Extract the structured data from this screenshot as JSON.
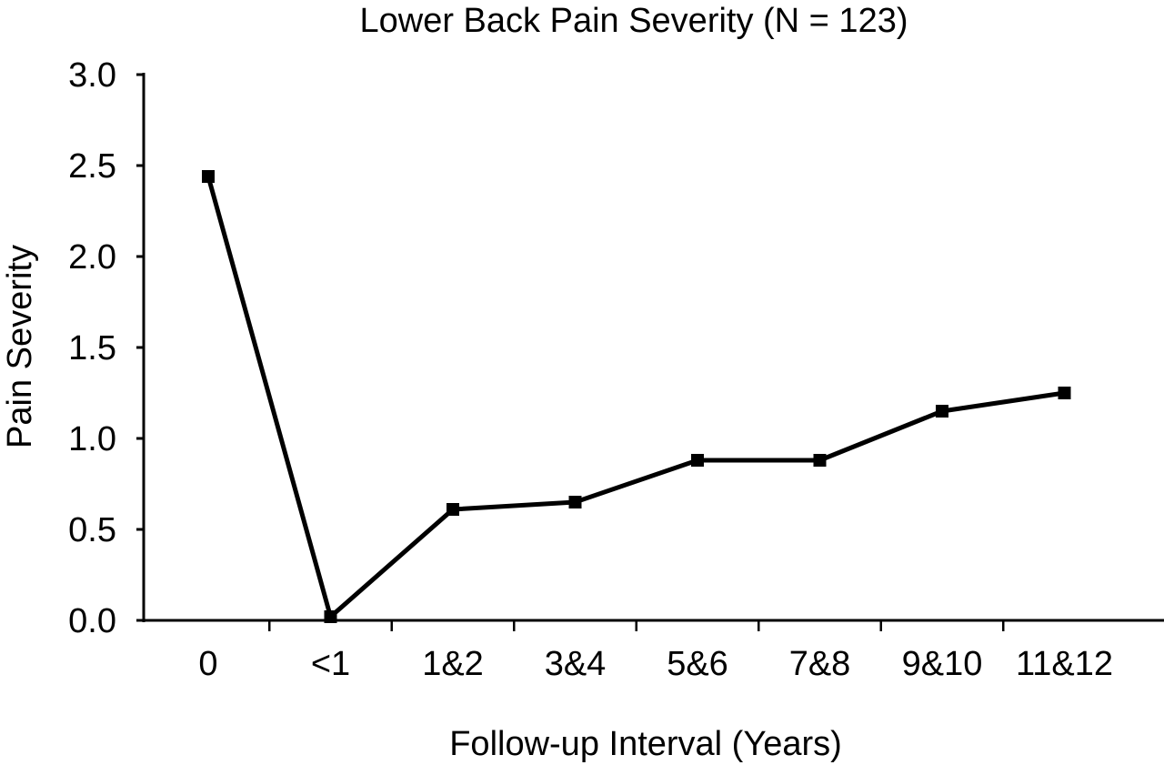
{
  "chart_data": {
    "type": "line",
    "title": "Lower Back Pain Severity (N = 123)",
    "xlabel": "Follow-up Interval (Years)",
    "ylabel": "Pain Severity",
    "categories": [
      "0",
      "<1",
      "1&2",
      "3&4",
      "5&6",
      "7&8",
      "9&10",
      "11&12"
    ],
    "series": [
      {
        "values": [
          2.44,
          0.02,
          0.61,
          0.65,
          0.88,
          0.88,
          1.15,
          1.25
        ]
      }
    ],
    "ylim": [
      0,
      3.0
    ],
    "yticks": [
      "0.0",
      "0.5",
      "1.0",
      "1.5",
      "2.0",
      "2.5",
      "3.0"
    ],
    "grid": false,
    "legend": "none",
    "colors": {
      "line": "#000000",
      "marker": "#000000",
      "axis": "#000000"
    }
  }
}
